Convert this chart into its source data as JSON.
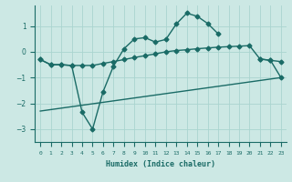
{
  "xlabel": "Humidex (Indice chaleur)",
  "ylabel": "",
  "background_color": "#cce8e4",
  "grid_color": "#aad4cf",
  "line_color": "#1a6b66",
  "x_values": [
    0,
    1,
    2,
    3,
    4,
    5,
    6,
    7,
    8,
    9,
    10,
    11,
    12,
    13,
    14,
    15,
    16,
    17,
    18,
    19,
    20,
    21,
    22,
    23
  ],
  "line1_y": [
    -0.3,
    -0.5,
    -0.5,
    -0.53,
    -0.53,
    -0.53,
    -0.45,
    -0.38,
    -0.3,
    -0.22,
    -0.15,
    -0.08,
    0.0,
    0.05,
    0.08,
    0.12,
    0.15,
    0.18,
    0.2,
    0.22,
    0.24,
    -0.28,
    -0.33,
    -0.38
  ],
  "line2_y": [
    -0.3,
    -0.5,
    -0.5,
    -0.53,
    -2.35,
    -3.0,
    -1.55,
    -0.55,
    0.12,
    0.5,
    0.55,
    0.38,
    0.48,
    1.08,
    1.5,
    1.38,
    1.1,
    0.7,
    null,
    null,
    null,
    -0.28,
    -0.33,
    -1.0
  ],
  "line3_x": [
    0,
    23
  ],
  "line3_y": [
    -2.3,
    -1.0
  ],
  "ylim": [
    -3.5,
    1.8
  ],
  "xlim": [
    -0.5,
    23.5
  ],
  "figsize": [
    3.2,
    2.0
  ],
  "dpi": 100
}
